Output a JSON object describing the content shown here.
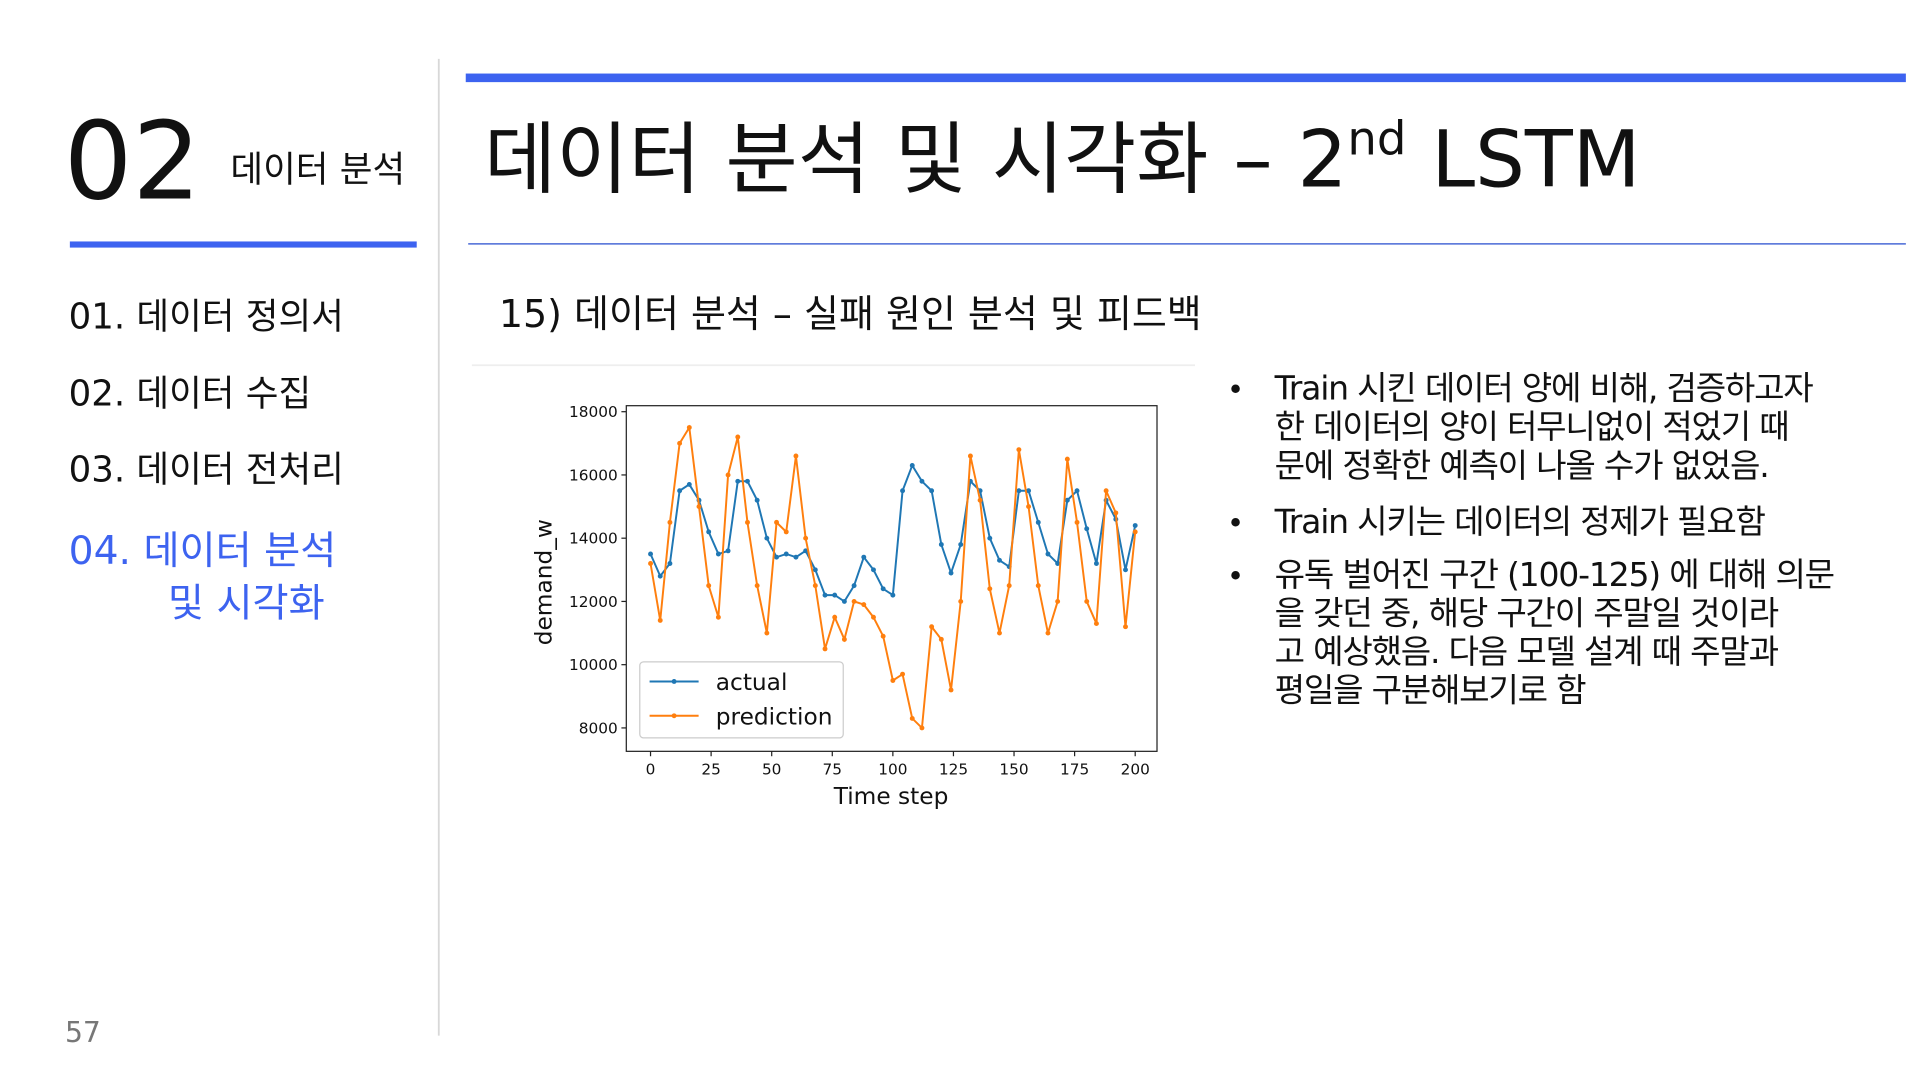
{
  "header": {
    "section_number": "02",
    "section_name": "데이터 분석",
    "title": "데이터 분석 및 시각화 – 2",
    "title_superscript": "nd",
    "title_end": " LSTM"
  },
  "nav": {
    "items": [
      "01. 데이터 정의서",
      "02. 데이터 수집",
      "03. 데이터 전처리"
    ],
    "active_item": [
      "04. 데이터 분석",
      "및 시각화"
    ]
  },
  "subtitle": "15) 데이터 분석 – 실패 원인 분석 및 피드백",
  "bullets": [
    [
      "Train 시킨 데이터 양에 비해, 검증하고자",
      "한 데이터의 양이 터무니없이 적었기 때",
      "문에 정확한 예측이 나올 수가 없었음."
    ],
    [
      "Train 시키는 데이터의 정제가 필요함"
    ],
    [
      "유독 벌어진 구간 (100-125) 에 대해 의문",
      "을 갖던 중, 해당 구간이 주말일 것이라",
      "고 예상했음. 다음 모델 설계 때 주말과",
      "평일을 구분해보기로 함"
    ]
  ],
  "page_number": "57",
  "chart_data": {
    "type": "line",
    "xlabel": "Time step",
    "ylabel": "demand_w",
    "x": [
      0,
      4,
      8,
      12,
      16,
      20,
      24,
      28,
      32,
      36,
      40,
      44,
      48,
      52,
      56,
      60,
      64,
      68,
      72,
      76,
      80,
      84,
      88,
      92,
      96,
      100,
      104,
      108,
      112,
      116,
      120,
      124,
      128,
      132,
      136,
      140,
      144,
      148,
      152,
      156,
      160,
      164,
      168,
      172,
      176,
      180,
      184,
      188,
      192,
      196,
      200
    ],
    "series": [
      {
        "name": "actual",
        "color": "#1f77b4",
        "values": [
          13500,
          12800,
          13200,
          15500,
          15700,
          15200,
          14200,
          13500,
          13600,
          15800,
          15800,
          15200,
          14000,
          13400,
          13500,
          13400,
          13600,
          13000,
          12200,
          12200,
          12000,
          12500,
          13400,
          13000,
          12400,
          12200,
          15500,
          16300,
          15800,
          15500,
          13800,
          12900,
          13800,
          15800,
          15500,
          14000,
          13300,
          13100,
          15500,
          15500,
          14500,
          13500,
          13200,
          15200,
          15500,
          14300,
          13200,
          15200,
          14600,
          13000,
          14400
        ]
      },
      {
        "name": "prediction",
        "color": "#ff7f0e",
        "values": [
          13200,
          11400,
          14500,
          17000,
          17500,
          15000,
          12500,
          11500,
          16000,
          17200,
          14500,
          12500,
          11000,
          14500,
          14200,
          16600,
          14000,
          12500,
          10500,
          11500,
          10800,
          12000,
          11900,
          11500,
          10900,
          9500,
          9700,
          8300,
          8000,
          11200,
          10800,
          9200,
          12000,
          16600,
          15200,
          12400,
          11000,
          12500,
          16800,
          15000,
          12500,
          11000,
          12000,
          16500,
          14500,
          12000,
          11300,
          15500,
          14800,
          11200,
          14200
        ]
      }
    ],
    "xlim": [
      -10,
      209
    ],
    "ylim": [
      7260,
      18190
    ],
    "xticks": [
      0,
      25,
      50,
      75,
      100,
      125,
      150,
      175,
      200
    ],
    "yticks": [
      8000,
      10000,
      12000,
      14000,
      16000,
      18000
    ],
    "legend": "lower left"
  }
}
